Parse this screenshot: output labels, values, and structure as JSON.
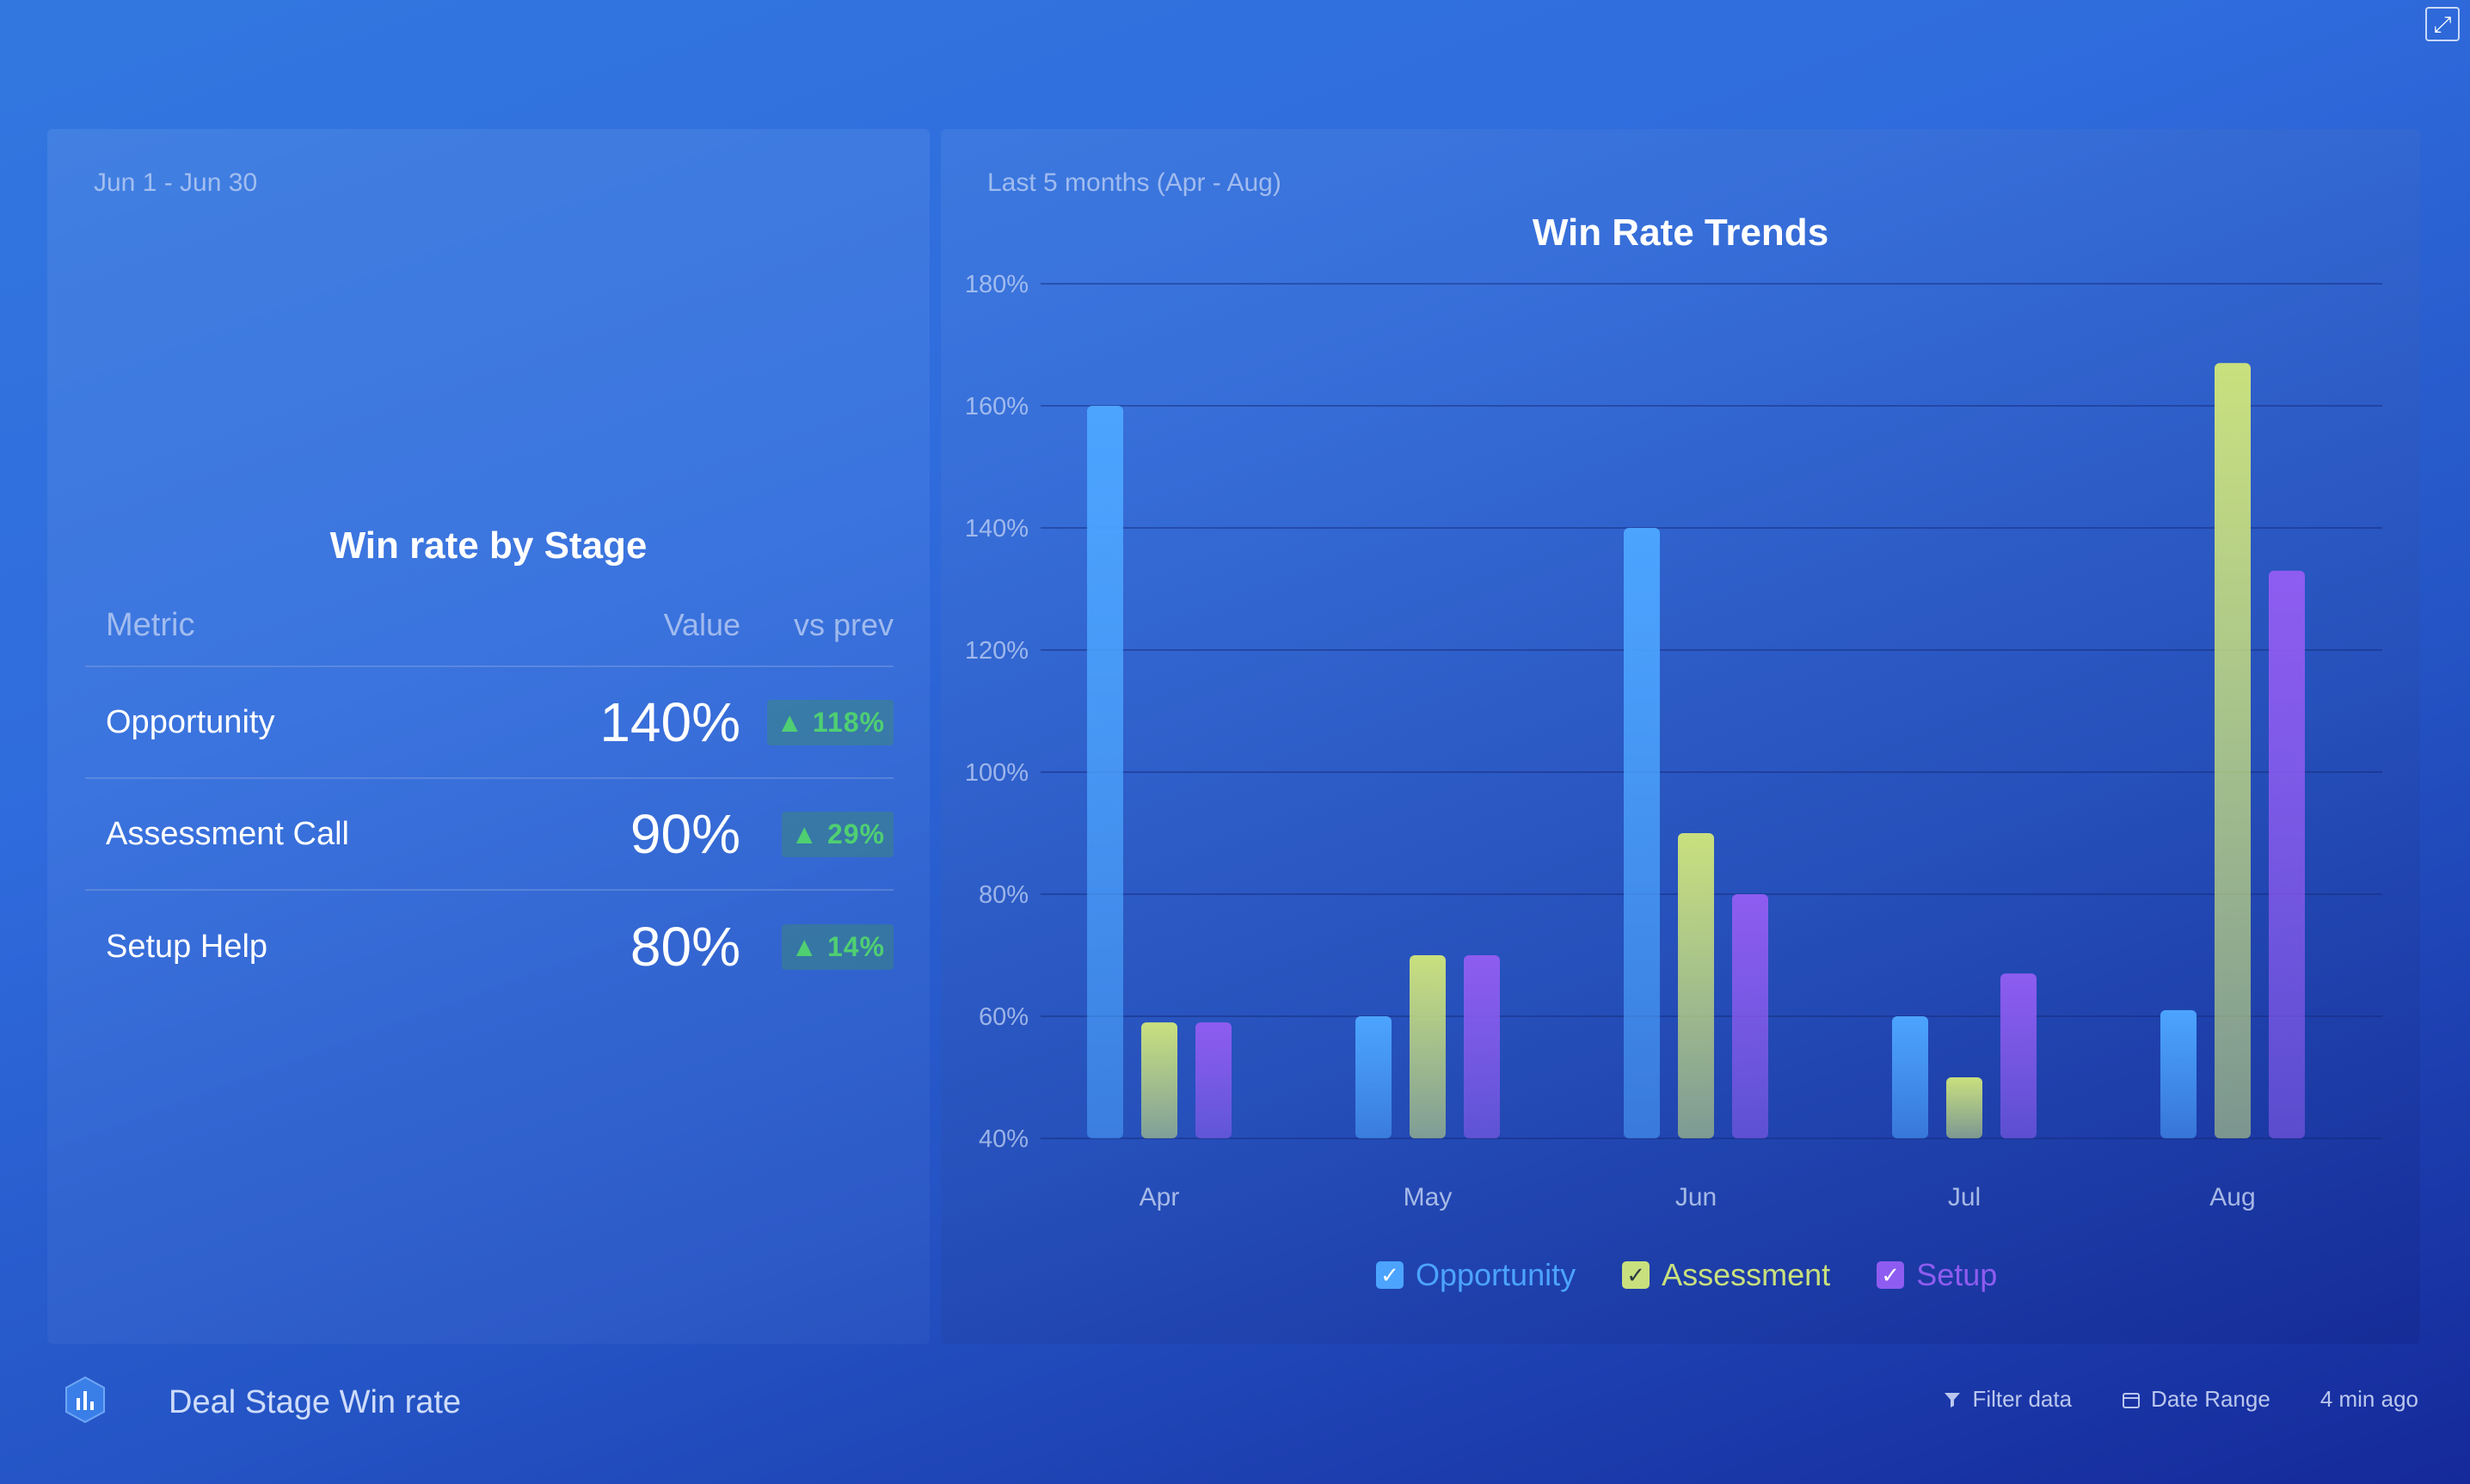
{
  "window": {
    "expand_icon": "expand-icon"
  },
  "left_panel": {
    "date_range": "Jun 1 - Jun 30",
    "title": "Win rate by Stage",
    "columns": {
      "metric": "Metric",
      "value": "Value",
      "prev": "vs prev"
    },
    "rows": [
      {
        "metric": "Opportunity",
        "value": "140%",
        "change": "▲ 118%"
      },
      {
        "metric": "Assessment Call",
        "value": "90%",
        "change": "▲ 29%"
      },
      {
        "metric": "Setup Help",
        "value": "80%",
        "change": "▲ 14%"
      }
    ],
    "change_color": "#4fcf72"
  },
  "right_panel": {
    "date_range": "Last 5 months (Apr - Aug)",
    "title": "Win Rate Trends"
  },
  "chart_data": {
    "type": "bar",
    "title": "Win Rate Trends",
    "categories": [
      "Apr",
      "May",
      "Jun",
      "Jul",
      "Aug"
    ],
    "series": [
      {
        "name": "Opportunity",
        "values": [
          160,
          60,
          140,
          60,
          61
        ],
        "color": "#4ca4ff"
      },
      {
        "name": "Assessment",
        "values": [
          59,
          70,
          90,
          50,
          167
        ],
        "color": "#c9e07e"
      },
      {
        "name": "Setup",
        "values": [
          59,
          70,
          80,
          67,
          133
        ],
        "color": "#8e5cf0"
      }
    ],
    "ylim": [
      40,
      180
    ],
    "yticks": [
      "40%",
      "60%",
      "80%",
      "100%",
      "120%",
      "140%",
      "160%",
      "180%"
    ],
    "grid": true,
    "legend_placement": "bottom-center"
  },
  "legend": [
    {
      "label": "Opportunity",
      "color": "#4ca4ff",
      "checked": true
    },
    {
      "label": "Assessment",
      "color": "#c9e07e",
      "checked": true
    },
    {
      "label": "Setup",
      "color": "#8e5cf0",
      "checked": true
    }
  ],
  "footer": {
    "title": "Deal Stage Win rate",
    "filter_label": "Filter data",
    "date_range_label": "Date Range",
    "updated": "4 min ago"
  }
}
